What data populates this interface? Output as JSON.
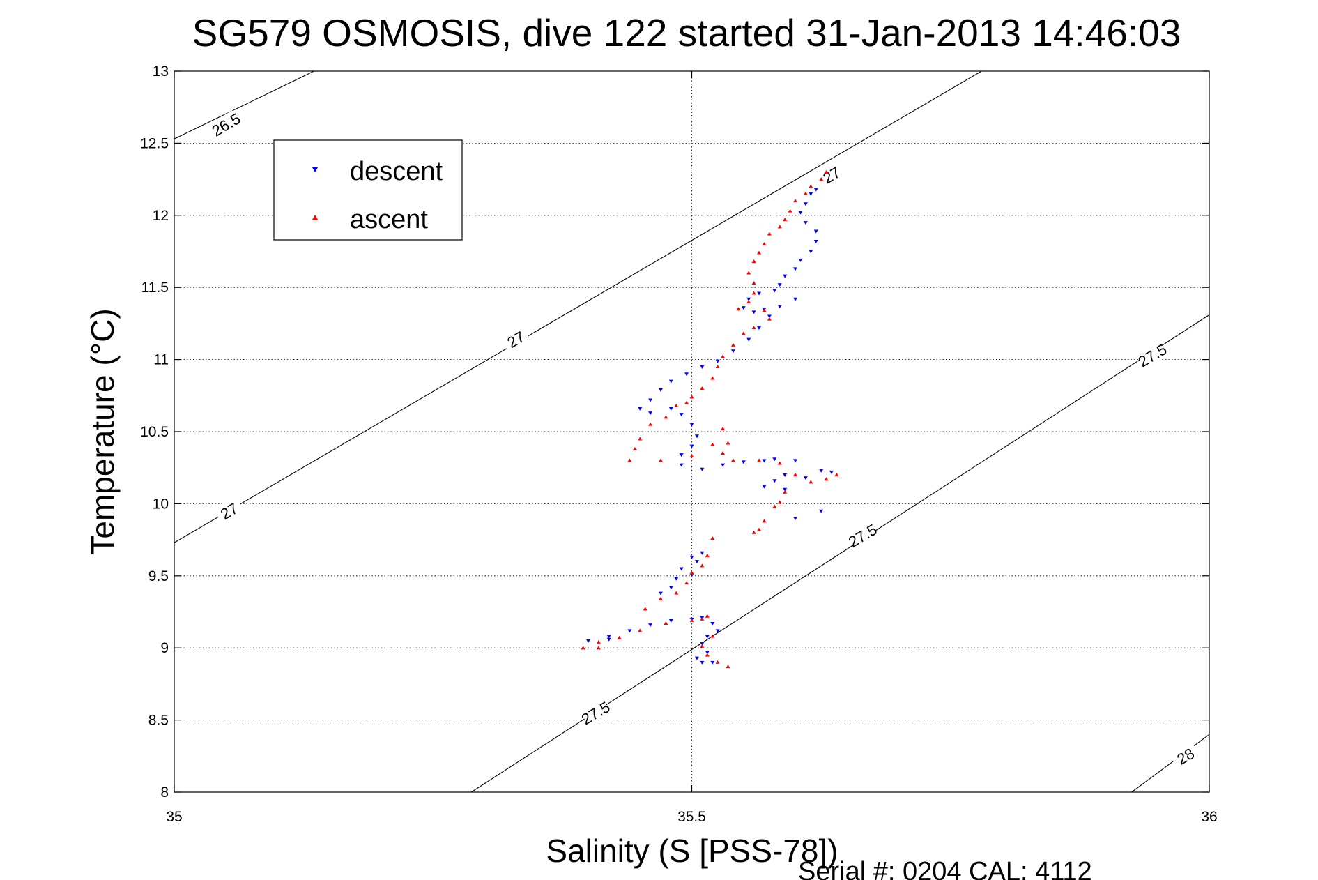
{
  "chart_data": {
    "type": "scatter",
    "title": "SG579 OSMOSIS, dive 122 started 31-Jan-2013 14:46:03",
    "xlabel": "Salinity (S [PSS-78])",
    "ylabel": "Temperature (°C)",
    "xlim": [
      35,
      36
    ],
    "ylim": [
      8,
      13
    ],
    "x_ticks": [
      "35",
      "35.5",
      "36"
    ],
    "y_ticks": [
      "8",
      "8.5",
      "9",
      "9.5",
      "10",
      "10.5",
      "11",
      "11.5",
      "12",
      "12.5",
      "13"
    ],
    "grid": true,
    "legend_position": "top-left",
    "series": [
      {
        "name": "descent",
        "marker": "triangle-down",
        "color": "#0000ff",
        "points": [
          [
            35.62,
            12.18
          ],
          [
            35.615,
            12.15
          ],
          [
            35.61,
            12.08
          ],
          [
            35.605,
            12.02
          ],
          [
            35.61,
            11.95
          ],
          [
            35.62,
            11.89
          ],
          [
            35.62,
            11.82
          ],
          [
            35.615,
            11.75
          ],
          [
            35.605,
            11.69
          ],
          [
            35.6,
            11.63
          ],
          [
            35.59,
            11.58
          ],
          [
            35.585,
            11.52
          ],
          [
            35.58,
            11.48
          ],
          [
            35.6,
            11.42
          ],
          [
            35.585,
            11.37
          ],
          [
            35.57,
            11.35
          ],
          [
            35.56,
            11.33
          ],
          [
            35.55,
            11.36
          ],
          [
            35.555,
            11.42
          ],
          [
            35.565,
            11.46
          ],
          [
            35.575,
            11.3
          ],
          [
            35.565,
            11.22
          ],
          [
            35.555,
            11.14
          ],
          [
            35.54,
            11.06
          ],
          [
            35.525,
            10.99
          ],
          [
            35.51,
            10.95
          ],
          [
            35.495,
            10.9
          ],
          [
            35.48,
            10.85
          ],
          [
            35.47,
            10.79
          ],
          [
            35.46,
            10.72
          ],
          [
            35.45,
            10.66
          ],
          [
            35.46,
            10.63
          ],
          [
            35.48,
            10.66
          ],
          [
            35.49,
            10.62
          ],
          [
            35.5,
            10.55
          ],
          [
            35.505,
            10.47
          ],
          [
            35.5,
            10.4
          ],
          [
            35.49,
            10.34
          ],
          [
            35.49,
            10.27
          ],
          [
            35.51,
            10.24
          ],
          [
            35.53,
            10.27
          ],
          [
            35.55,
            10.29
          ],
          [
            35.57,
            10.3
          ],
          [
            35.58,
            10.31
          ],
          [
            35.6,
            10.3
          ],
          [
            35.59,
            10.2
          ],
          [
            35.58,
            10.16
          ],
          [
            35.57,
            10.12
          ],
          [
            35.59,
            10.1
          ],
          [
            35.61,
            10.18
          ],
          [
            35.625,
            10.23
          ],
          [
            35.635,
            10.22
          ],
          [
            35.6,
            9.9
          ],
          [
            35.625,
            9.95
          ],
          [
            35.5,
            9.63
          ],
          [
            35.505,
            9.6
          ],
          [
            35.51,
            9.66
          ],
          [
            35.49,
            9.55
          ],
          [
            35.485,
            9.48
          ],
          [
            35.48,
            9.42
          ],
          [
            35.47,
            9.38
          ],
          [
            35.5,
            9.51
          ],
          [
            35.5,
            9.2
          ],
          [
            35.51,
            9.21
          ],
          [
            35.48,
            9.19
          ],
          [
            35.46,
            9.16
          ],
          [
            35.44,
            9.12
          ],
          [
            35.42,
            9.08
          ],
          [
            35.4,
            9.05
          ],
          [
            35.42,
            9.06
          ],
          [
            35.52,
            9.17
          ],
          [
            35.525,
            9.12
          ],
          [
            35.515,
            9.08
          ],
          [
            35.51,
            9.03
          ],
          [
            35.515,
            8.97
          ],
          [
            35.505,
            8.93
          ],
          [
            35.51,
            8.9
          ],
          [
            35.52,
            8.9
          ]
        ]
      },
      {
        "name": "ascent",
        "marker": "triangle-up",
        "color": "#ff0000",
        "points": [
          [
            35.63,
            12.3
          ],
          [
            35.625,
            12.25
          ],
          [
            35.615,
            12.2
          ],
          [
            35.61,
            12.15
          ],
          [
            35.6,
            12.1
          ],
          [
            35.595,
            12.03
          ],
          [
            35.59,
            11.97
          ],
          [
            35.585,
            11.92
          ],
          [
            35.575,
            11.87
          ],
          [
            35.57,
            11.8
          ],
          [
            35.565,
            11.74
          ],
          [
            35.56,
            11.68
          ],
          [
            35.555,
            11.6
          ],
          [
            35.56,
            11.53
          ],
          [
            35.56,
            11.46
          ],
          [
            35.555,
            11.4
          ],
          [
            35.545,
            11.35
          ],
          [
            35.57,
            11.34
          ],
          [
            35.575,
            11.28
          ],
          [
            35.56,
            11.22
          ],
          [
            35.55,
            11.18
          ],
          [
            35.54,
            11.1
          ],
          [
            35.53,
            11.02
          ],
          [
            35.525,
            10.95
          ],
          [
            35.52,
            10.87
          ],
          [
            35.51,
            10.8
          ],
          [
            35.5,
            10.74
          ],
          [
            35.495,
            10.7
          ],
          [
            35.485,
            10.68
          ],
          [
            35.475,
            10.6
          ],
          [
            35.46,
            10.55
          ],
          [
            35.45,
            10.45
          ],
          [
            35.445,
            10.38
          ],
          [
            35.44,
            10.3
          ],
          [
            35.47,
            10.3
          ],
          [
            35.5,
            10.33
          ],
          [
            35.52,
            10.41
          ],
          [
            35.53,
            10.52
          ],
          [
            35.535,
            10.42
          ],
          [
            35.53,
            10.35
          ],
          [
            35.54,
            10.3
          ],
          [
            35.565,
            10.3
          ],
          [
            35.585,
            10.28
          ],
          [
            35.6,
            10.2
          ],
          [
            35.615,
            10.15
          ],
          [
            35.63,
            10.17
          ],
          [
            35.64,
            10.2
          ],
          [
            35.59,
            10.08
          ],
          [
            35.585,
            10.01
          ],
          [
            35.58,
            9.98
          ],
          [
            35.57,
            9.88
          ],
          [
            35.565,
            9.82
          ],
          [
            35.56,
            9.8
          ],
          [
            35.52,
            9.76
          ],
          [
            35.515,
            9.64
          ],
          [
            35.51,
            9.57
          ],
          [
            35.5,
            9.52
          ],
          [
            35.495,
            9.45
          ],
          [
            35.485,
            9.38
          ],
          [
            35.47,
            9.34
          ],
          [
            35.455,
            9.27
          ],
          [
            35.51,
            9.2
          ],
          [
            35.515,
            9.22
          ],
          [
            35.5,
            9.19
          ],
          [
            35.475,
            9.17
          ],
          [
            35.45,
            9.12
          ],
          [
            35.43,
            9.07
          ],
          [
            35.41,
            9.04
          ],
          [
            35.395,
            9.0
          ],
          [
            35.41,
            9.0
          ],
          [
            35.52,
            9.08
          ],
          [
            35.51,
            9.01
          ],
          [
            35.515,
            8.95
          ],
          [
            35.525,
            8.9
          ],
          [
            35.535,
            8.87
          ]
        ]
      }
    ],
    "contours": [
      {
        "label": "26.5",
        "segment": [
          [
            35.0,
            12.53
          ],
          [
            35.135,
            13.0
          ]
        ]
      },
      {
        "label": "27",
        "segment": [
          [
            35.0,
            9.73
          ],
          [
            35.78,
            13.0
          ]
        ]
      },
      {
        "label": "27.5",
        "segment": [
          [
            35.287,
            8.0
          ],
          [
            36.0,
            11.31
          ]
        ]
      },
      {
        "label": "28",
        "segment": [
          [
            35.925,
            8.0
          ],
          [
            36.0,
            8.4
          ]
        ]
      }
    ],
    "contour_labels": [
      {
        "text": "26.5",
        "x": 35.05,
        "y": 12.63
      },
      {
        "text": "27",
        "x": 35.635,
        "y": 12.28
      },
      {
        "text": "27",
        "x": 35.33,
        "y": 11.14
      },
      {
        "text": "27",
        "x": 35.053,
        "y": 9.95
      },
      {
        "text": "27.5",
        "x": 35.945,
        "y": 11.03
      },
      {
        "text": "27.5",
        "x": 35.665,
        "y": 9.78
      },
      {
        "text": "27.5",
        "x": 35.407,
        "y": 8.55
      },
      {
        "text": "28",
        "x": 35.977,
        "y": 8.25
      }
    ],
    "footer": "Serial #: 0204  CAL: 4112"
  }
}
